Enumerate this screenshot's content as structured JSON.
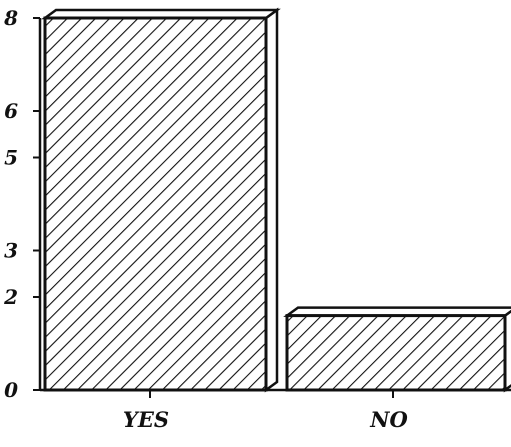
{
  "chart_data": {
    "type": "bar",
    "categories": [
      "YES",
      "NO"
    ],
    "values": [
      8,
      1.6
    ],
    "y_ticks": [
      "0",
      "2",
      "3",
      "5",
      "6",
      "8"
    ],
    "ylim": [
      0,
      8
    ],
    "grid": false,
    "style": "3d-hatched",
    "bar_color": "#111111"
  }
}
